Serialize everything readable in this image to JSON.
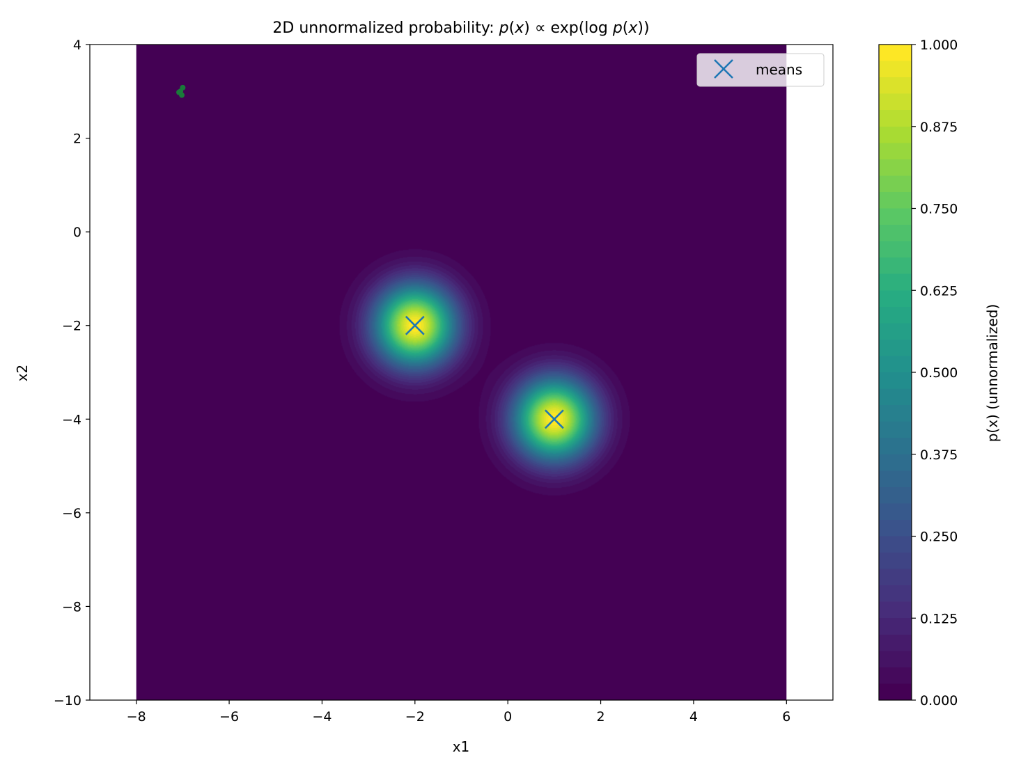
{
  "chart_data": {
    "type": "heatmap",
    "title": "2D unnormalized probability: p(x) ∝ exp(log p(x))",
    "title_parts": {
      "prefix": "2D unnormalized probability: ",
      "p1": "p",
      "x1": "x",
      "mid": " ∝ exp(log ",
      "p2": "p",
      "x2": "x",
      "suffix": "))"
    },
    "xlabel": "x1",
    "ylabel": "x2",
    "xlim": [
      -9,
      7
    ],
    "ylim": [
      -10,
      4
    ],
    "data_extent": {
      "x": [
        -8,
        6
      ],
      "y": [
        -10,
        4
      ]
    },
    "xticks": [
      -8,
      -6,
      -4,
      -2,
      0,
      2,
      4,
      6
    ],
    "xtick_labels": [
      "−8",
      "−6",
      "−4",
      "−2",
      "0",
      "2",
      "4",
      "6"
    ],
    "yticks": [
      4,
      2,
      0,
      -2,
      -4,
      -6,
      -8,
      -10
    ],
    "ytick_labels": [
      "4",
      "2",
      "0",
      "−2",
      "−4",
      "−6",
      "−8",
      "−10"
    ],
    "grid": false,
    "colormap": "viridis",
    "colorbar": {
      "label": "p(x) (unnormalized)",
      "range": [
        0,
        1
      ],
      "ticks": [
        0,
        0.125,
        0.25,
        0.375,
        0.5,
        0.625,
        0.75,
        0.875,
        1
      ],
      "tick_labels": [
        "0.000",
        "0.125",
        "0.250",
        "0.375",
        "0.500",
        "0.625",
        "0.750",
        "0.875",
        "1.000"
      ]
    },
    "components": [
      {
        "mean": [
          -2,
          -2
        ],
        "std": 0.6,
        "peak": 1.0
      },
      {
        "mean": [
          1,
          -4
        ],
        "std": 0.6,
        "peak": 1.0
      }
    ],
    "series": [
      {
        "name": "means",
        "type": "scatter",
        "marker": "x",
        "color": "#1f77b4",
        "x": [
          -2,
          1
        ],
        "y": [
          -2,
          -4
        ]
      },
      {
        "type": "scatter",
        "marker": "o",
        "color": "#1a7a3a",
        "x": [
          -7.05,
          -7.0,
          -7.02,
          -7.08
        ],
        "y": [
          3.0,
          3.08,
          2.92,
          2.98
        ]
      }
    ],
    "legend": {
      "placement": "top-right",
      "entries": [
        "means"
      ]
    }
  }
}
